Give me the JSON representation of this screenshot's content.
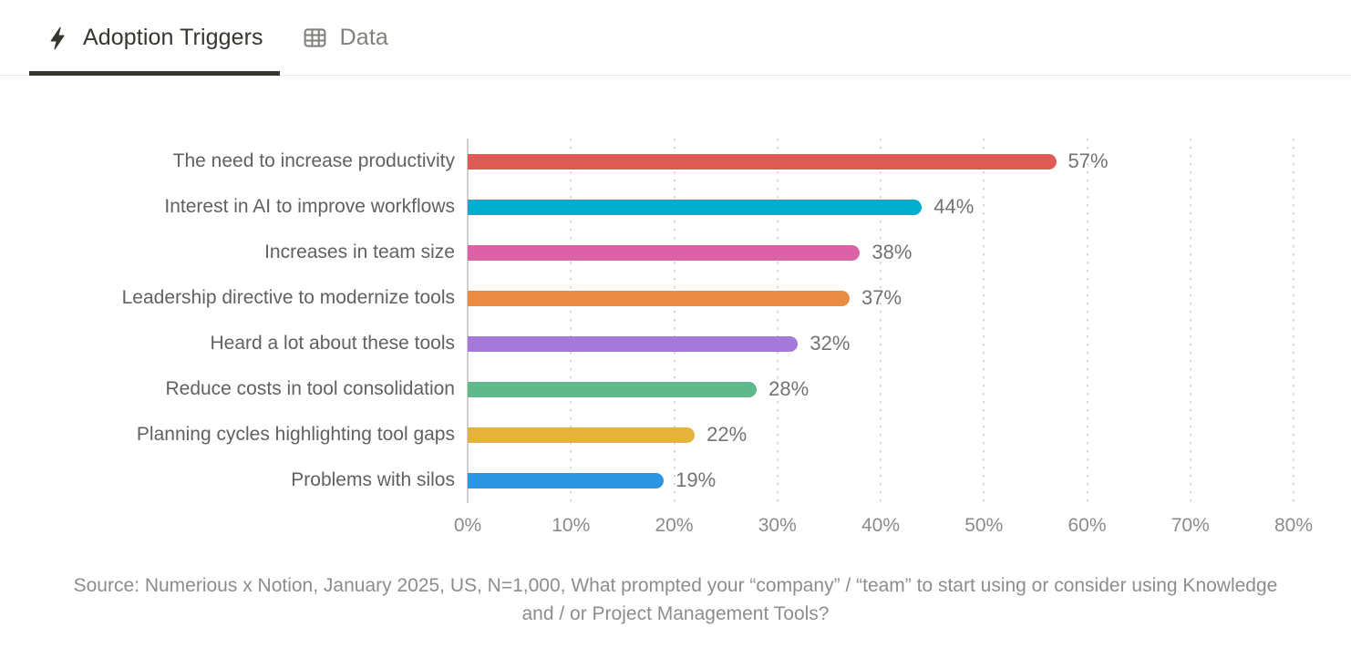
{
  "header": {
    "tabs": [
      {
        "label": "Adoption Triggers",
        "icon": "lightning-bolt-icon",
        "active": true
      },
      {
        "label": "Data",
        "icon": "data-table-icon",
        "active": false
      }
    ]
  },
  "chart_data": {
    "type": "bar",
    "orientation": "horizontal",
    "title": "Adoption Triggers",
    "categories": [
      "The need to increase productivity",
      "Interest in AI to improve workflows",
      "Increases in team size",
      "Leadership directive to modernize tools",
      "Heard a lot about these tools",
      "Reduce costs in tool consolidation",
      "Planning cycles highlighting tool gaps",
      "Problems with silos"
    ],
    "values": [
      57,
      44,
      38,
      37,
      32,
      28,
      22,
      19
    ],
    "value_labels": [
      "57%",
      "44%",
      "38%",
      "37%",
      "32%",
      "28%",
      "22%",
      "19%"
    ],
    "bar_colors": [
      "#de5b55",
      "#00afce",
      "#dc62a6",
      "#e98b42",
      "#a379dc",
      "#5fba8b",
      "#e5b33b",
      "#2d96e3"
    ],
    "xlim": [
      0,
      80
    ],
    "x_ticks": [
      "0%",
      "10%",
      "20%",
      "30%",
      "40%",
      "50%",
      "60%",
      "70%",
      "80%"
    ],
    "grid": "vertical dotted gridlines every 10%",
    "legend": "none",
    "source_note": "Source: Numerious x Notion, January 2025, US, N=1,000, What prompted your “company” / “team” to start using or consider using Knowledge and / or Project Management Tools?"
  },
  "colors": {
    "tab_active_text": "#37352f",
    "tab_inactive_text": "#82807c",
    "tab_underline": "#37352f",
    "tabbar_border": "#e8e8e7",
    "axis_line": "#cfcfcf",
    "gridline": "#d8d8d8",
    "category_label": "#616161",
    "value_label": "#737373",
    "tick_label": "#8b8b8b",
    "source_text": "#8d8d8d",
    "background": "#ffffff"
  }
}
